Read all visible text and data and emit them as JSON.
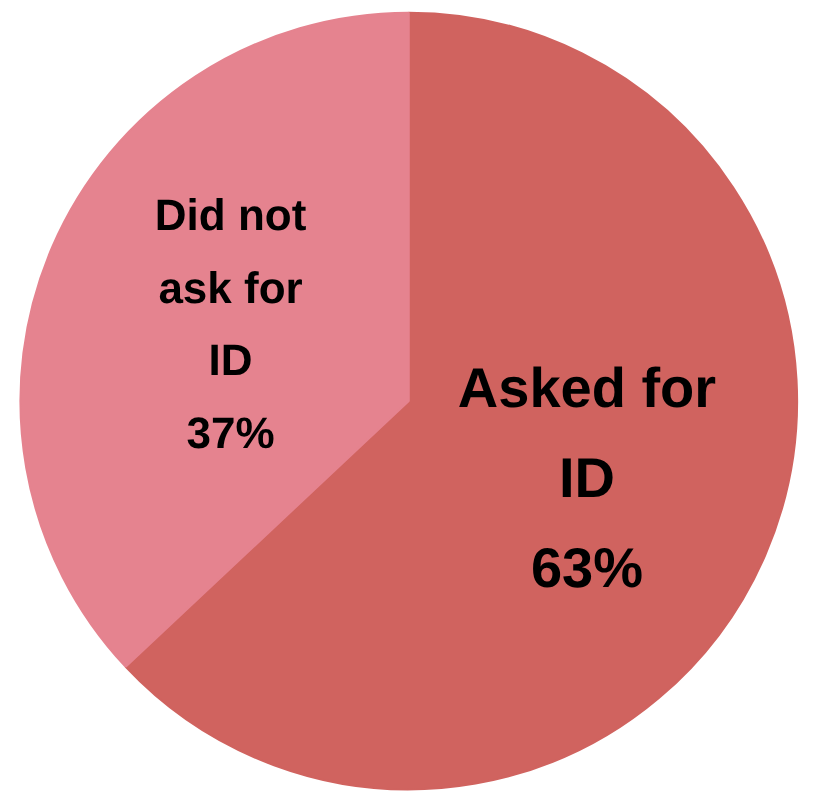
{
  "chart_data": {
    "type": "pie",
    "categories": [
      "Asked for ID",
      "Did not ask for ID"
    ],
    "values": [
      63,
      37
    ],
    "colors": [
      "#d0635f",
      "#e5838f"
    ],
    "value_labels": [
      "63%",
      "37%"
    ]
  }
}
